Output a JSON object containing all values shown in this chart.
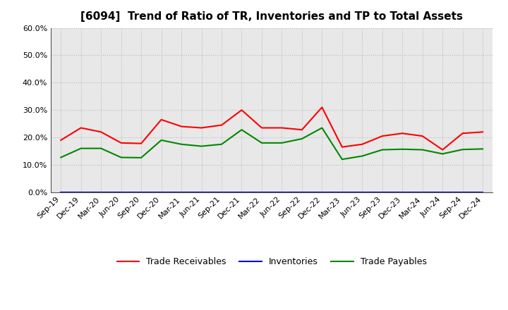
{
  "title": "[6094]  Trend of Ratio of TR, Inventories and TP to Total Assets",
  "x_labels": [
    "Sep-19",
    "Dec-19",
    "Mar-20",
    "Jun-20",
    "Sep-20",
    "Dec-20",
    "Mar-21",
    "Jun-21",
    "Sep-21",
    "Dec-21",
    "Mar-22",
    "Jun-22",
    "Sep-22",
    "Dec-22",
    "Mar-23",
    "Jun-23",
    "Sep-23",
    "Dec-23",
    "Mar-24",
    "Jun-24",
    "Sep-24",
    "Dec-24"
  ],
  "trade_receivables": [
    0.19,
    0.235,
    0.22,
    0.18,
    0.178,
    0.265,
    0.24,
    0.235,
    0.245,
    0.3,
    0.235,
    0.235,
    0.228,
    0.31,
    0.165,
    0.175,
    0.205,
    0.215,
    0.205,
    0.155,
    0.215,
    0.22
  ],
  "inventories": [
    0.0,
    0.0,
    0.0,
    0.0,
    0.0,
    0.0,
    0.0,
    0.0,
    0.0,
    0.0,
    0.0,
    0.0,
    0.0,
    0.0,
    0.0,
    0.0,
    0.0,
    0.0,
    0.0,
    0.0,
    0.0,
    0.0
  ],
  "trade_payables": [
    0.127,
    0.16,
    0.16,
    0.127,
    0.126,
    0.19,
    0.175,
    0.168,
    0.175,
    0.228,
    0.18,
    0.18,
    0.195,
    0.235,
    0.12,
    0.132,
    0.155,
    0.157,
    0.155,
    0.14,
    0.156,
    0.158
  ],
  "tr_color": "#ff0000",
  "inv_color": "#0000cc",
  "tp_color": "#008800",
  "ylim": [
    0.0,
    0.6
  ],
  "yticks": [
    0.0,
    0.1,
    0.2,
    0.3,
    0.4,
    0.5,
    0.6
  ],
  "background_color": "#ffffff",
  "plot_bg_color": "#e8e8e8",
  "grid_color": "#bbbbbb",
  "title_fontsize": 11,
  "legend_fontsize": 9,
  "tick_fontsize": 8
}
